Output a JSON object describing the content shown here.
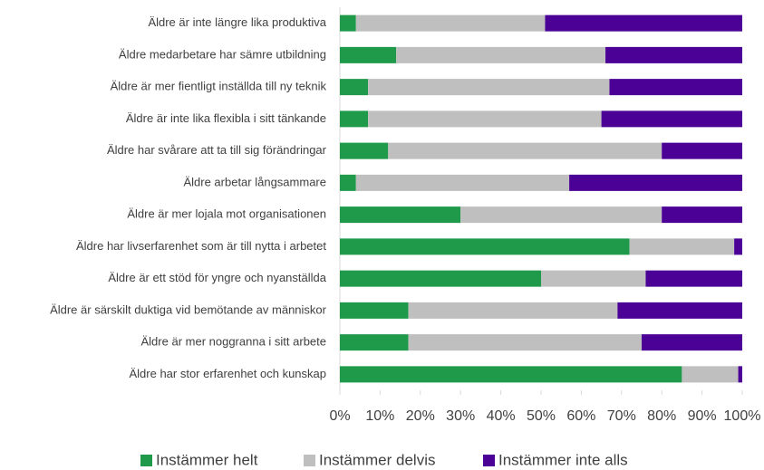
{
  "chart_data": {
    "type": "stacked-barh",
    "categories": [
      "Äldre är inte längre lika produktiva",
      "Äldre medarbetare har sämre utbildning",
      "Äldre är mer fientligt inställda till ny teknik",
      "Äldre är inte lika flexibla i sitt tänkande",
      "Äldre har svårare att ta till sig förändringar",
      "Äldre arbetar långsammare",
      "Äldre är mer lojala mot organisationen",
      "Äldre har livserfarenhet som är till nytta i arbetet",
      "Äldre är ett stöd för yngre och nyanställda",
      "Äldre är särskilt duktiga vid bemötande av människor",
      "Äldre är mer noggranna i sitt  arbete",
      "Äldre har stor erfarenhet och kunskap"
    ],
    "series": [
      {
        "name": "Instämmer helt",
        "color": "#1e9a4a",
        "values": [
          4,
          14,
          7,
          7,
          12,
          4,
          30,
          72,
          50,
          17,
          17,
          85
        ]
      },
      {
        "name": "Instämmer delvis",
        "color": "#bfbfbf",
        "values": [
          47,
          52,
          60,
          58,
          68,
          53,
          50,
          26,
          26,
          52,
          58,
          14
        ]
      },
      {
        "name": "Instämmer inte alls",
        "color": "#4b0096",
        "values": [
          49,
          34,
          33,
          35,
          20,
          43,
          20,
          2,
          24,
          31,
          25,
          1
        ]
      }
    ],
    "xlim": [
      0,
      100
    ],
    "xticks": [
      {
        "value": 0,
        "label": "0%"
      },
      {
        "value": 10,
        "label": "10%"
      },
      {
        "value": 20,
        "label": "20%"
      },
      {
        "value": 30,
        "label": "30%"
      },
      {
        "value": 40,
        "label": "40%"
      },
      {
        "value": 50,
        "label": "50%"
      },
      {
        "value": 60,
        "label": "60%"
      },
      {
        "value": 70,
        "label": "70%"
      },
      {
        "value": 80,
        "label": "80%"
      },
      {
        "value": 90,
        "label": "90%"
      },
      {
        "value": 100,
        "label": "100%"
      }
    ],
    "legend": "bottom"
  }
}
